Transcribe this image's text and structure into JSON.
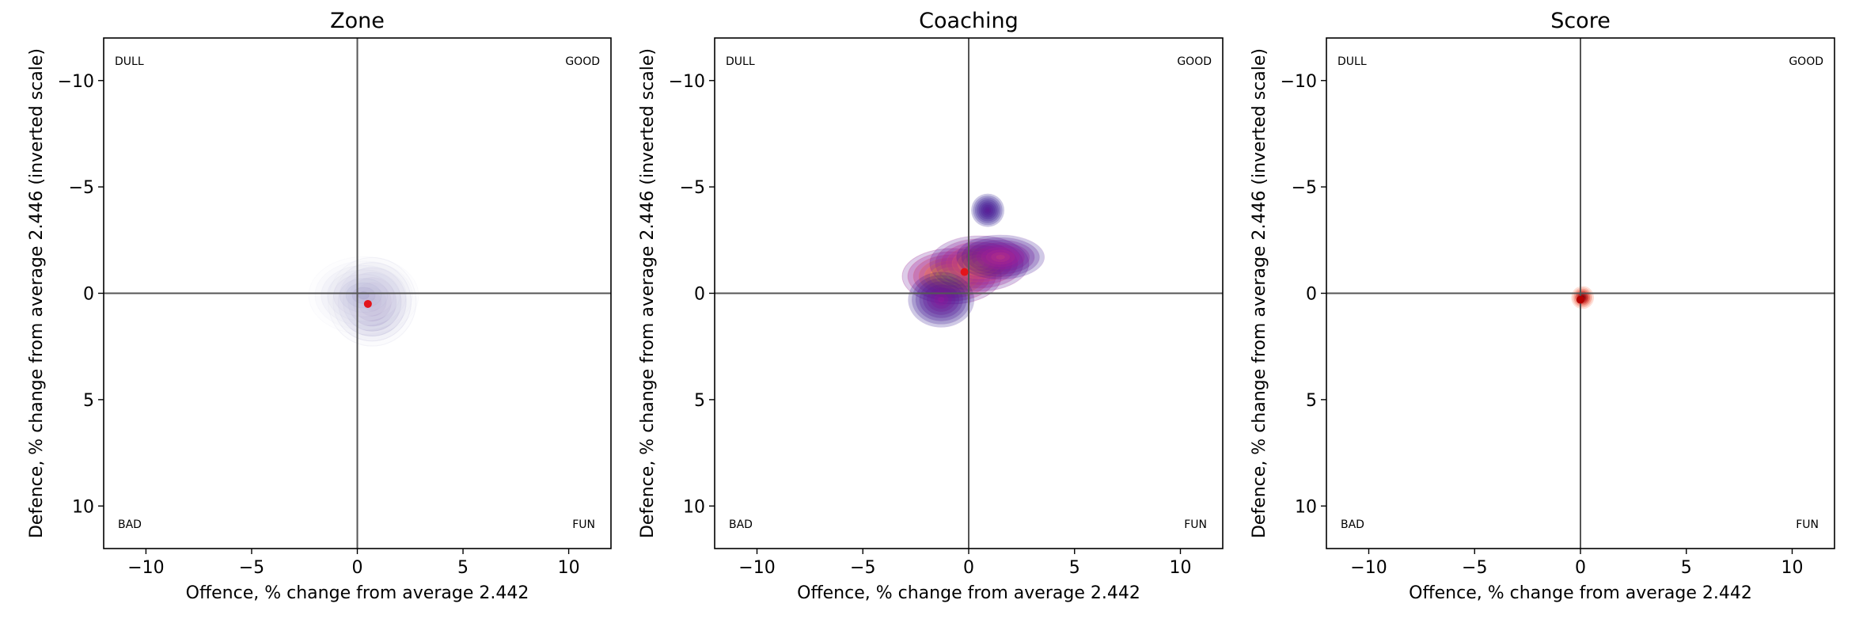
{
  "chart_data": [
    {
      "type": "density",
      "title": "Zone",
      "xlabel": "Offence, % change from average 2.442",
      "ylabel": "Defence, % change from average 2.446 (inverted scale)",
      "xlim": [
        -12,
        12
      ],
      "ylim": [
        12,
        -12
      ],
      "y_inverted": true,
      "xticks": [
        -10,
        -5,
        0,
        5,
        10
      ],
      "yticks": [
        -10,
        -5,
        0,
        5,
        10
      ],
      "xtick_labels": [
        "−10",
        "−5",
        "0",
        "5",
        "10"
      ],
      "ytick_labels": [
        "−10",
        "−5",
        "0",
        "5",
        "10"
      ],
      "quadrant_labels": {
        "top_left": "DULL",
        "top_right": "GOOD",
        "bottom_left": "BAD",
        "bottom_right": "FUN"
      },
      "colormap": "purples",
      "density_blobs": [
        {
          "x": 0.7,
          "y": 0.4,
          "sx": 0.8,
          "sy": 0.8,
          "weight": 1.0
        },
        {
          "x": 0.3,
          "y": 0.1,
          "sx": 1.0,
          "sy": 0.7,
          "weight": 0.45
        }
      ],
      "center_point": {
        "x": 0.5,
        "y": 0.5,
        "color": "#e3141b"
      }
    },
    {
      "type": "density",
      "title": "Coaching",
      "xlabel": "Offence, % change from average 2.442",
      "ylabel": "Defence, % change from average 2.446 (inverted scale)",
      "xlim": [
        -12,
        12
      ],
      "ylim": [
        12,
        -12
      ],
      "y_inverted": true,
      "xticks": [
        -10,
        -5,
        0,
        5,
        10
      ],
      "yticks": [
        -10,
        -5,
        0,
        5,
        10
      ],
      "xtick_labels": [
        "−10",
        "−5",
        "0",
        "5",
        "10"
      ],
      "ytick_labels": [
        "−10",
        "−5",
        "0",
        "5",
        "10"
      ],
      "quadrant_labels": {
        "top_left": "DULL",
        "top_right": "GOOD",
        "bottom_left": "BAD",
        "bottom_right": "FUN"
      },
      "colormap": "plasma",
      "density_blobs": [
        {
          "x": -0.8,
          "y": -0.8,
          "sx": 0.9,
          "sy": 0.5,
          "weight": 1.0
        },
        {
          "x": 0.5,
          "y": -1.4,
          "sx": 0.9,
          "sy": 0.5,
          "weight": 0.75
        },
        {
          "x": 1.5,
          "y": -1.7,
          "sx": 0.8,
          "sy": 0.4,
          "weight": 0.35
        },
        {
          "x": -1.3,
          "y": 0.3,
          "sx": 0.6,
          "sy": 0.5,
          "weight": 0.2
        },
        {
          "x": 0.9,
          "y": -3.9,
          "sx": 0.3,
          "sy": 0.3,
          "weight": 0.12
        }
      ],
      "center_point": {
        "x": -0.2,
        "y": -1.0,
        "color": "#e3141b"
      }
    },
    {
      "type": "density",
      "title": "Score",
      "xlabel": "Offence, % change from average 2.442",
      "ylabel": "Defence, % change from average 2.446 (inverted scale)",
      "xlim": [
        -12,
        12
      ],
      "ylim": [
        12,
        -12
      ],
      "y_inverted": true,
      "xticks": [
        -10,
        -5,
        0,
        5,
        10
      ],
      "yticks": [
        -10,
        -5,
        0,
        5,
        10
      ],
      "xtick_labels": [
        "−10",
        "−5",
        "0",
        "5",
        "10"
      ],
      "ytick_labels": [
        "−10",
        "−5",
        "0",
        "5",
        "10"
      ],
      "quadrant_labels": {
        "top_left": "DULL",
        "top_right": "GOOD",
        "bottom_left": "BAD",
        "bottom_right": "FUN"
      },
      "colormap": "reds",
      "density_blobs": [
        {
          "x": 0.1,
          "y": 0.2,
          "sx": 0.2,
          "sy": 0.2,
          "weight": 1.0
        }
      ],
      "center_point": {
        "x": 0.0,
        "y": 0.3,
        "color": "#b30000"
      }
    }
  ]
}
